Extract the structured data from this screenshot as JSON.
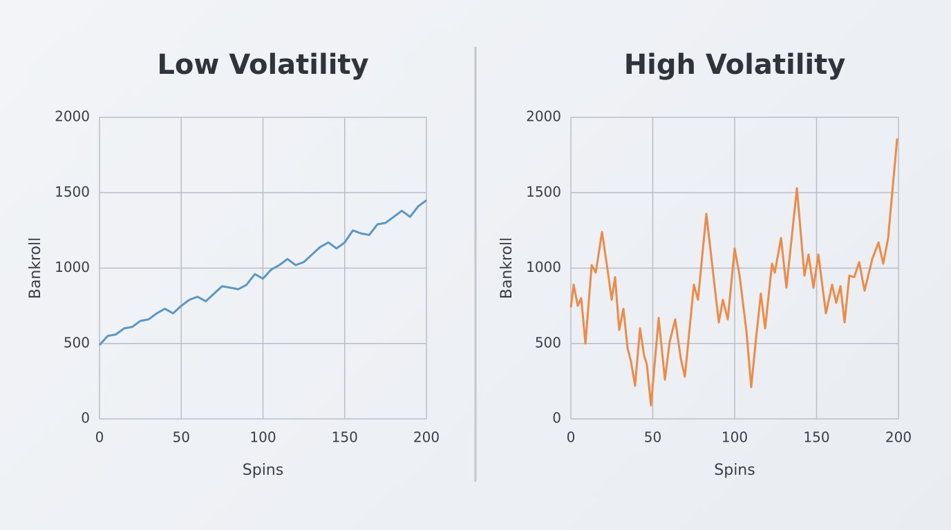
{
  "chart_data": [
    {
      "type": "line",
      "title": "Low Volatility",
      "xlabel": "Spins",
      "ylabel": "Bankroll",
      "x": [
        0,
        5,
        10,
        15,
        20,
        25,
        30,
        35,
        40,
        45,
        50,
        55,
        60,
        65,
        70,
        75,
        80,
        85,
        90,
        95,
        100,
        105,
        110,
        115,
        120,
        125,
        130,
        135,
        140,
        145,
        150,
        155,
        160,
        165,
        170,
        175,
        180,
        185,
        190,
        195,
        200
      ],
      "series": [
        {
          "name": "Low Volatility",
          "color": "#5b96c8",
          "values": [
            490,
            550,
            560,
            600,
            610,
            650,
            660,
            700,
            730,
            700,
            750,
            790,
            810,
            780,
            830,
            880,
            870,
            860,
            890,
            960,
            930,
            990,
            1020,
            1060,
            1020,
            1040,
            1090,
            1140,
            1170,
            1130,
            1170,
            1250,
            1230,
            1220,
            1290,
            1300,
            1340,
            1380,
            1340,
            1410,
            1450
          ]
        }
      ],
      "xlim": [
        0,
        200
      ],
      "ylim": [
        0,
        2000
      ],
      "xticks": [
        0,
        50,
        100,
        150,
        200
      ],
      "yticks": [
        0,
        500,
        1000,
        1500,
        2000
      ],
      "grid": true
    },
    {
      "type": "line",
      "title": "High Volatility",
      "xlabel": "Spins",
      "ylabel": "Bankroll",
      "x": [
        0,
        1.7,
        4.2,
        6.3,
        8.9,
        12.7,
        15.2,
        19,
        22.4,
        24.9,
        27,
        29.5,
        32.1,
        34.6,
        36.7,
        39.2,
        42.2,
        44.7,
        46.4,
        48.9,
        53.6,
        57.4,
        60.3,
        63.7,
        67.1,
        69.6,
        75.1,
        77.6,
        82.7,
        90.3,
        92.8,
        95.8,
        100,
        103,
        107.2,
        110.1,
        113.1,
        116,
        118.6,
        122.8,
        124.5,
        128.3,
        131.6,
        138,
        142.6,
        145.1,
        148.1,
        151.1,
        155.7,
        159.5,
        162,
        164.6,
        167.1,
        170,
        173,
        176,
        179.3,
        184,
        187.8,
        190.7,
        193.7,
        199.2
      ],
      "series": [
        {
          "name": "High Volatility",
          "color": "#ee8a45",
          "values": [
            740,
            890,
            750,
            800,
            500,
            1020,
            970,
            1240,
            990,
            790,
            940,
            590,
            730,
            470,
            380,
            220,
            600,
            420,
            360,
            90,
            670,
            260,
            510,
            660,
            400,
            280,
            890,
            790,
            1360,
            640,
            790,
            660,
            1130,
            950,
            580,
            210,
            540,
            830,
            600,
            1030,
            970,
            1200,
            870,
            1530,
            950,
            1090,
            870,
            1090,
            700,
            890,
            770,
            880,
            640,
            950,
            940,
            1040,
            850,
            1060,
            1170,
            1030,
            1200,
            1860
          ]
        }
      ],
      "xlim": [
        0,
        200
      ],
      "ylim": [
        0,
        2000
      ],
      "xticks": [
        0,
        50,
        100,
        150,
        200
      ],
      "yticks": [
        0,
        500,
        1000,
        1500,
        2000
      ],
      "grid": true
    }
  ]
}
